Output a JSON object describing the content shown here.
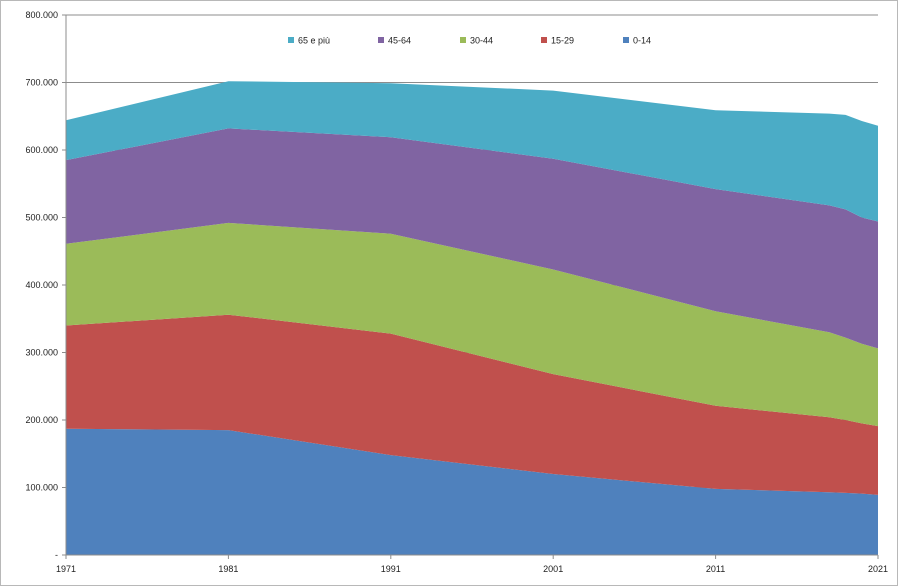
{
  "chart_data": {
    "type": "area",
    "stacked": true,
    "title": "",
    "xlabel": "",
    "ylabel": "",
    "x": [
      1971,
      1981,
      1991,
      2001,
      2011,
      2018,
      2019,
      2020,
      2021
    ],
    "ylim": [
      0,
      800000
    ],
    "y_ticks": [
      {
        "value": 0,
        "label": "-"
      },
      {
        "value": 100000,
        "label": "100.000"
      },
      {
        "value": 200000,
        "label": "200.000"
      },
      {
        "value": 300000,
        "label": "300.000"
      },
      {
        "value": 400000,
        "label": "400.000"
      },
      {
        "value": 500000,
        "label": "500.000"
      },
      {
        "value": 600000,
        "label": "600.000"
      },
      {
        "value": 700000,
        "label": "700.000"
      },
      {
        "value": 800000,
        "label": "800.000"
      }
    ],
    "x_ticks": [
      {
        "value": 1971,
        "label": "1971"
      },
      {
        "value": 1981,
        "label": "1981"
      },
      {
        "value": 1991,
        "label": "1991"
      },
      {
        "value": 2001,
        "label": "2001"
      },
      {
        "value": 2011,
        "label": "2011"
      },
      {
        "value": 2021,
        "label": "2021"
      }
    ],
    "grid": "horizontal",
    "legend_position": "top",
    "series": [
      {
        "name": "0-14",
        "color": "#4f81bd",
        "values": [
          187000,
          185000,
          148000,
          120000,
          98000,
          93000,
          92000,
          91000,
          89000
        ]
      },
      {
        "name": "15-29",
        "color": "#c0504d",
        "values": [
          153000,
          171000,
          180000,
          148000,
          123000,
          111000,
          108000,
          104000,
          102000
        ]
      },
      {
        "name": "30-44",
        "color": "#9bbb59",
        "values": [
          121000,
          136000,
          148000,
          155000,
          140000,
          126000,
          122000,
          118000,
          115000
        ]
      },
      {
        "name": "45-64",
        "color": "#8064a2",
        "values": [
          124000,
          140000,
          143000,
          164000,
          181000,
          188000,
          190000,
          187000,
          188000
        ]
      },
      {
        "name": "65 e più",
        "color": "#4bacc6",
        "values": [
          59000,
          70000,
          80000,
          101000,
          117000,
          136000,
          140000,
          143000,
          142000
        ]
      }
    ],
    "legend": [
      {
        "name": "65 e più",
        "color": "#4bacc6"
      },
      {
        "name": "45-64",
        "color": "#8064a2"
      },
      {
        "name": "30-44",
        "color": "#9bbb59"
      },
      {
        "name": "15-29",
        "color": "#c0504d"
      },
      {
        "name": "0-14",
        "color": "#4f81bd"
      }
    ]
  }
}
